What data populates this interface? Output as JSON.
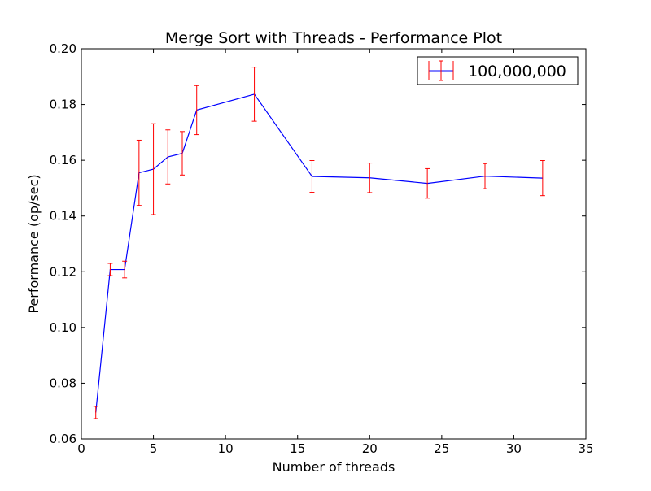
{
  "chart_data": {
    "type": "line",
    "title": "Merge Sort with Threads - Performance Plot",
    "xlabel": "Number of threads",
    "ylabel": "Performance (op/sec)",
    "xlim": [
      0,
      35
    ],
    "ylim": [
      0.06,
      0.2
    ],
    "xticks": [
      0,
      5,
      10,
      15,
      20,
      25,
      30,
      35
    ],
    "yticks": [
      0.06,
      0.08,
      0.1,
      0.12,
      0.14,
      0.16,
      0.18,
      0.2
    ],
    "xtick_labels": [
      "0",
      "5",
      "10",
      "15",
      "20",
      "25",
      "30",
      "35"
    ],
    "ytick_labels": [
      "0.06",
      "0.08",
      "0.10",
      "0.12",
      "0.14",
      "0.16",
      "0.18",
      "0.20"
    ],
    "grid": false,
    "legend_position": "top-right",
    "series": [
      {
        "name": "100,000,000",
        "line_color": "#0000ff",
        "errorbar_color": "#ff0000",
        "x": [
          1,
          2,
          3,
          4,
          5,
          6,
          7,
          8,
          12,
          16,
          20,
          24,
          28,
          32
        ],
        "y": [
          0.0695,
          0.1208,
          0.1208,
          0.1555,
          0.1568,
          0.1612,
          0.1625,
          0.178,
          0.1837,
          0.1542,
          0.1537,
          0.1517,
          0.1543,
          0.1536
        ],
        "err": [
          0.0022,
          0.0022,
          0.003,
          0.0117,
          0.0163,
          0.0097,
          0.0078,
          0.0088,
          0.0097,
          0.0057,
          0.0053,
          0.0053,
          0.0045,
          0.0063
        ]
      }
    ]
  }
}
